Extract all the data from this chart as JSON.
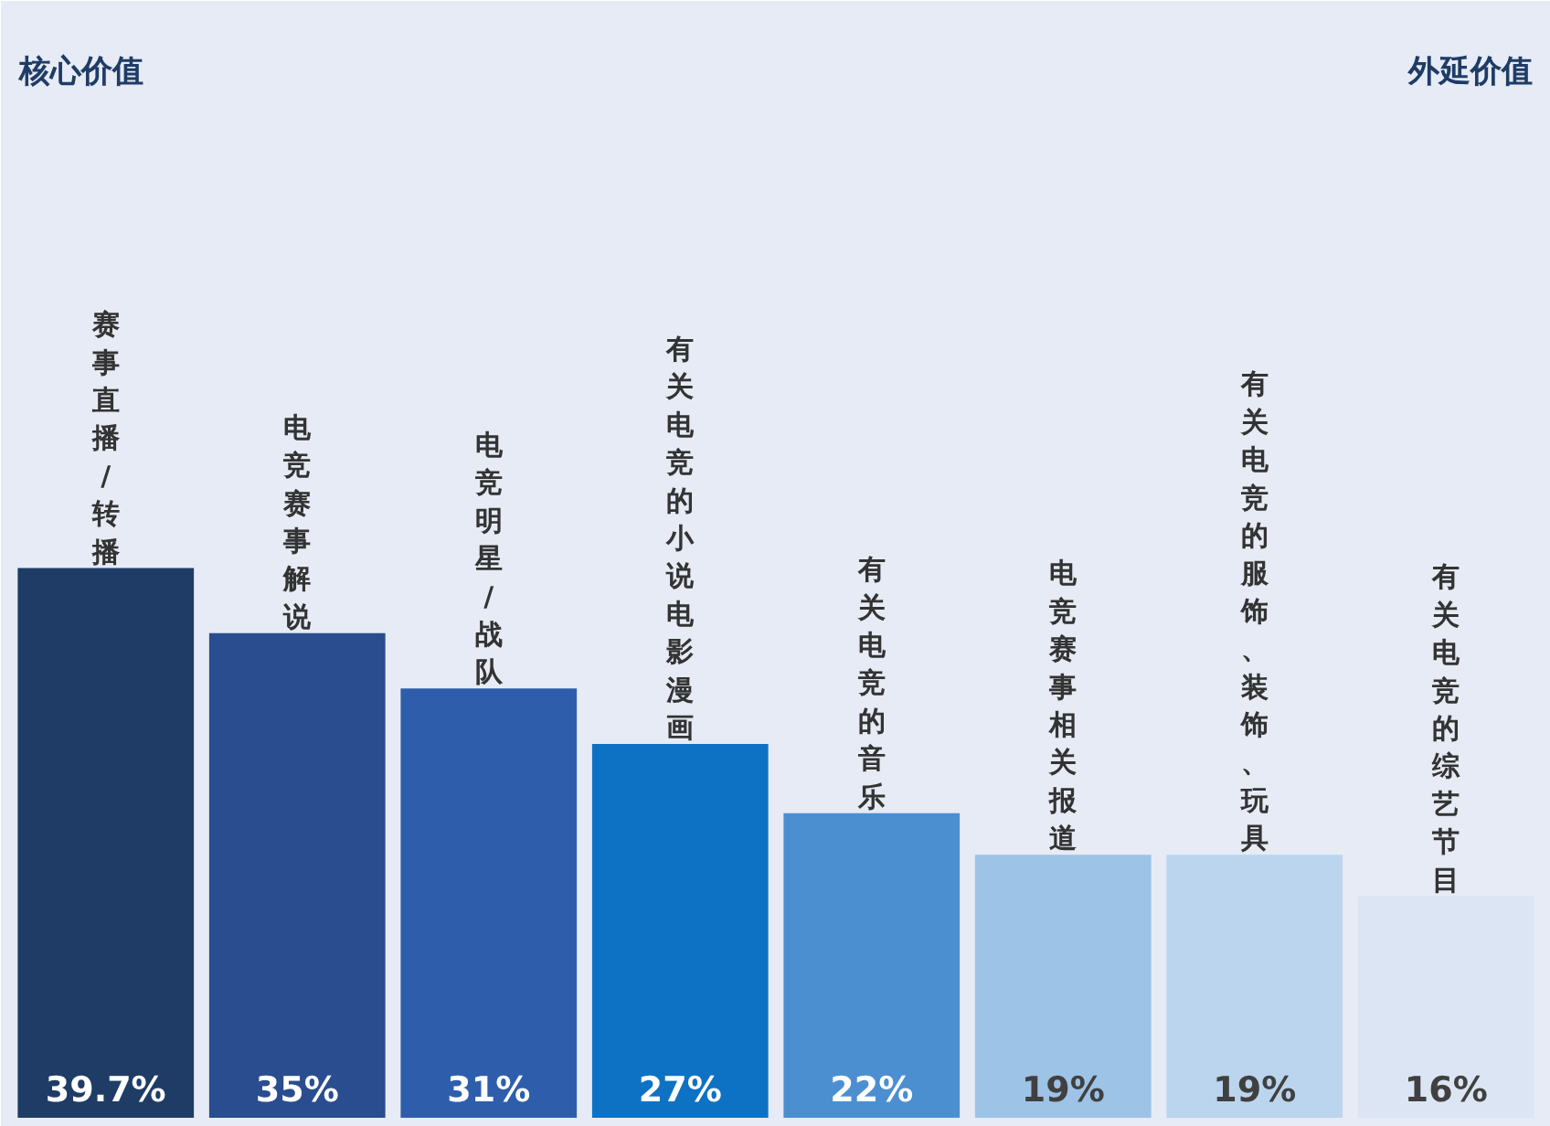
{
  "chart_data": {
    "type": "bar",
    "categories": [
      "赛事直播/转播",
      "电竞赛事解说",
      "电竞明星/战队",
      "有关电竞的小说电影漫画",
      "有关电竞的音乐",
      "电竞赛事相关报道",
      "有关电竞的服饰、装饰、玩具",
      "有关电竞的综艺节目"
    ],
    "values": [
      39.7,
      35,
      31,
      27,
      22,
      19,
      19,
      16
    ],
    "value_labels": [
      "39.7%",
      "35%",
      "31%",
      "27%",
      "22%",
      "19%",
      "19%",
      "16%"
    ],
    "colors": [
      "#1f3c66",
      "#2a4d8f",
      "#2e5eab",
      "#0e72c4",
      "#4b8fd1",
      "#9dc3e6",
      "#bcd5ee",
      "#dce5f3"
    ],
    "ylim": [
      0,
      80
    ],
    "annotations": [
      "核心价值",
      "外延价值"
    ]
  }
}
